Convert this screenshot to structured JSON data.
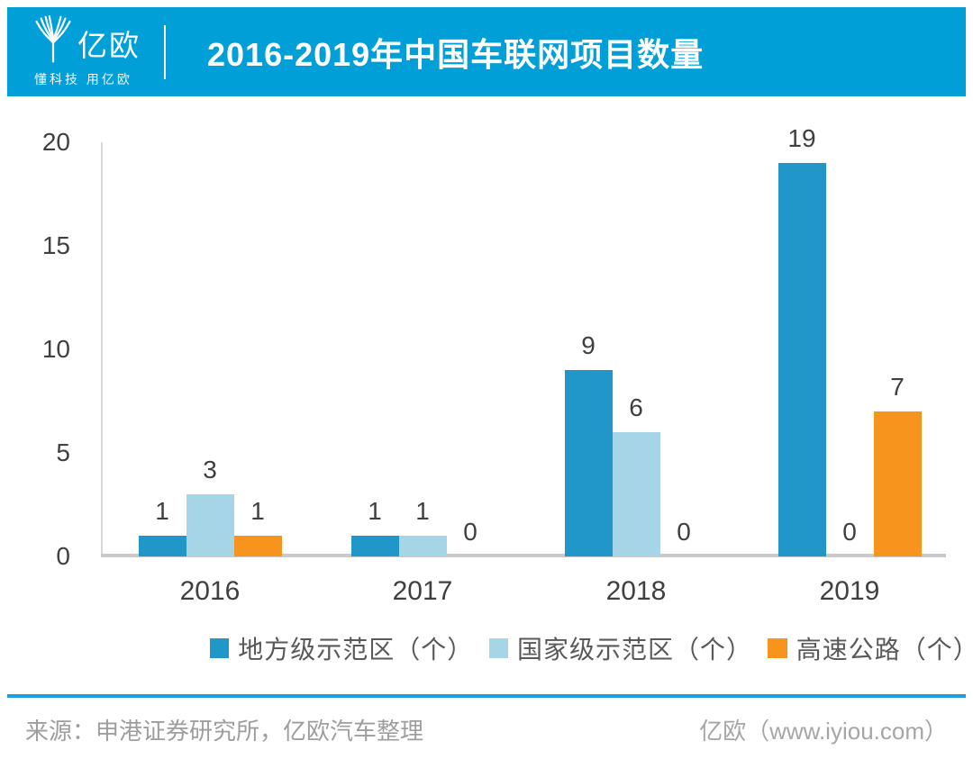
{
  "header": {
    "logo_text": "亿欧",
    "logo_tagline": "懂科技 用亿欧",
    "title": "2016-2019年中国车联网项目数量",
    "bg_color": "#009FD8"
  },
  "chart_data": {
    "type": "bar",
    "title": "2016-2019年中国车联网项目数量",
    "categories": [
      "2016",
      "2017",
      "2018",
      "2019"
    ],
    "series": [
      {
        "name": "地方级示范区（个）",
        "color": "#2196C9",
        "values": [
          1,
          1,
          9,
          19
        ]
      },
      {
        "name": "国家级示范区（个）",
        "color": "#A7D5E8",
        "values": [
          3,
          1,
          6,
          0
        ]
      },
      {
        "name": "高速公路（个）",
        "color": "#F7941E",
        "values": [
          1,
          0,
          0,
          7
        ]
      }
    ],
    "xlabel": "",
    "ylabel": "",
    "ylim": [
      0,
      20
    ],
    "yticks": [
      0,
      5,
      10,
      15,
      20
    ],
    "grid": false,
    "data_labels": true,
    "legend_position": "bottom",
    "axis_color": "#D8D8D8",
    "baseline_color": "#C9C9C9"
  },
  "footer": {
    "source": "来源：申港证券研究所，亿欧汽车整理",
    "site": "亿欧（www.iyiou.com）",
    "divider_color": "#1CA0DC"
  }
}
